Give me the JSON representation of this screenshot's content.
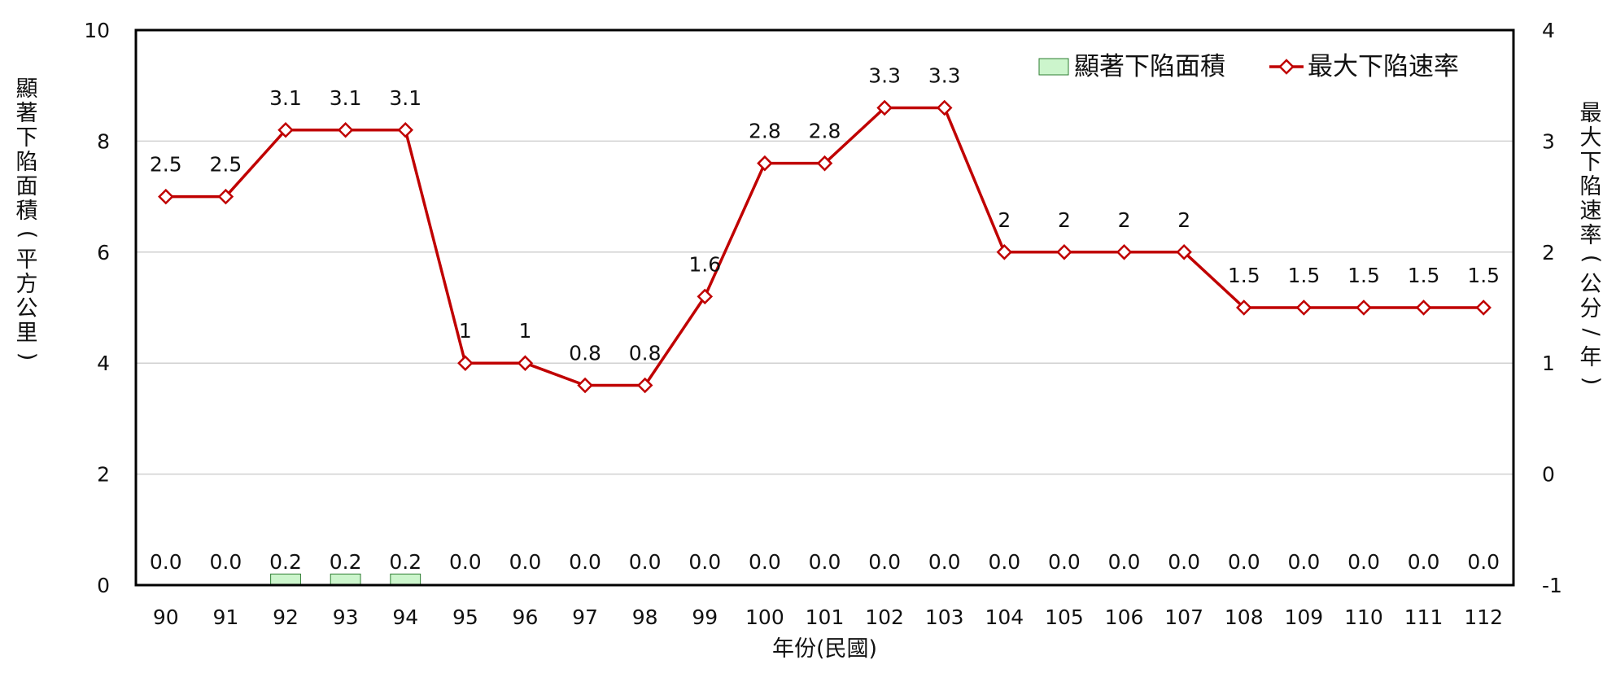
{
  "chart_data": {
    "type": "bar+line",
    "categories": [
      "90",
      "91",
      "92",
      "93",
      "94",
      "95",
      "96",
      "97",
      "98",
      "99",
      "100",
      "101",
      "102",
      "103",
      "104",
      "105",
      "106",
      "107",
      "108",
      "109",
      "110",
      "111",
      "112"
    ],
    "series": [
      {
        "name": "顯著下陷面積",
        "type": "bar",
        "axis": "left",
        "values": [
          0.0,
          0.0,
          0.2,
          0.2,
          0.2,
          0.0,
          0.0,
          0.0,
          0.0,
          0.0,
          0.0,
          0.0,
          0.0,
          0.0,
          0.0,
          0.0,
          0.0,
          0.0,
          0.0,
          0.0,
          0.0,
          0.0,
          0.0
        ],
        "labels": [
          "0.0",
          "0.0",
          "0.2",
          "0.2",
          "0.2",
          "0.0",
          "0.0",
          "0.0",
          "0.0",
          "0.0",
          "0.0",
          "0.0",
          "0.0",
          "0.0",
          "0.0",
          "0.0",
          "0.0",
          "0.0",
          "0.0",
          "0.0",
          "0.0",
          "0.0",
          "0.0"
        ],
        "color": "#ccf5cc",
        "border": "#2e7d32"
      },
      {
        "name": "最大下陷速率",
        "type": "line",
        "axis": "right",
        "values": [
          2.5,
          2.5,
          3.1,
          3.1,
          3.1,
          1,
          1,
          0.8,
          0.8,
          1.6,
          2.8,
          2.8,
          3.3,
          3.3,
          2,
          2,
          2,
          2,
          1.5,
          1.5,
          1.5,
          1.5,
          1.5
        ],
        "labels": [
          "2.5",
          "2.5",
          "3.1",
          "3.1",
          "3.1",
          "1",
          "1",
          "0.8",
          "0.8",
          "1.6",
          "2.8",
          "2.8",
          "3.3",
          "3.3",
          "2",
          "2",
          "2",
          "2",
          "1.5",
          "1.5",
          "1.5",
          "1.5",
          "1.5"
        ],
        "color": "#c00000",
        "marker": "diamond"
      }
    ],
    "xlabel": "年份(民國)",
    "ylabel_left_chars": [
      "顯",
      "著",
      "下",
      "陷",
      "面",
      "積",
      "(",
      "平",
      "方",
      "公",
      "里",
      ")"
    ],
    "ylabel_right_chars": [
      "最",
      "大",
      "下",
      "陷",
      "速",
      "率",
      "(",
      "公",
      "分",
      "/",
      "年",
      ")"
    ],
    "ylim_left": [
      0,
      10
    ],
    "yticks_left": [
      "0",
      "2",
      "4",
      "6",
      "8",
      "10"
    ],
    "ylim_right": [
      -1,
      4
    ],
    "yticks_right": [
      "-1",
      "0",
      "1",
      "2",
      "3",
      "4"
    ],
    "grid": true,
    "legend_position": "top-right"
  }
}
